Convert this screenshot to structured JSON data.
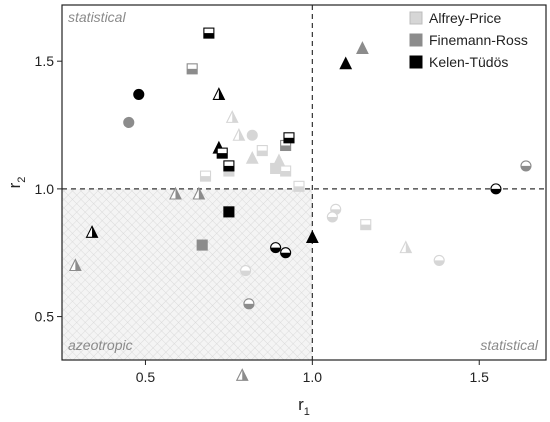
{
  "chart_data": {
    "type": "scatter",
    "xlabel": "r",
    "xlabel_sub": "1",
    "ylabel": "r",
    "ylabel_sub": "2",
    "xlim": [
      0.25,
      1.7
    ],
    "ylim": [
      0.33,
      1.72
    ],
    "x_ticks": [
      {
        "value": 0.5,
        "label": "0.5"
      },
      {
        "value": 1.0,
        "label": "1.0"
      },
      {
        "value": 1.5,
        "label": "1.5"
      }
    ],
    "y_ticks": [
      {
        "value": 0.5,
        "label": "0.5"
      },
      {
        "value": 1.0,
        "label": "1.0"
      },
      {
        "value": 1.5,
        "label": "1.5"
      }
    ],
    "reference_lines": {
      "x": 1.0,
      "y": 1.0
    },
    "shaded_region": {
      "x": [
        0.25,
        1.0
      ],
      "y": [
        0.33,
        1.0
      ]
    },
    "region_labels": {
      "top_left": "statistical",
      "bottom_left": "azeotropic",
      "bottom_right": "statistical"
    },
    "legend_position": "top-right",
    "series": [
      {
        "name": "Alfrey-Price",
        "color": "#d6d6d6",
        "points": [
          {
            "x": 0.76,
            "y": 1.28,
            "shape": "triangle",
            "fill": "half"
          },
          {
            "x": 0.78,
            "y": 1.21,
            "shape": "triangle",
            "fill": "half"
          },
          {
            "x": 0.82,
            "y": 1.21,
            "shape": "circle",
            "fill": "full"
          },
          {
            "x": 0.85,
            "y": 1.15,
            "shape": "square",
            "fill": "half"
          },
          {
            "x": 0.82,
            "y": 1.12,
            "shape": "triangle",
            "fill": "full"
          },
          {
            "x": 0.89,
            "y": 1.08,
            "shape": "square",
            "fill": "full"
          },
          {
            "x": 0.9,
            "y": 1.11,
            "shape": "triangle",
            "fill": "full"
          },
          {
            "x": 0.92,
            "y": 1.07,
            "shape": "square",
            "fill": "half"
          },
          {
            "x": 0.68,
            "y": 1.05,
            "shape": "square",
            "fill": "half"
          },
          {
            "x": 0.75,
            "y": 1.07,
            "shape": "square",
            "fill": "half"
          },
          {
            "x": 0.96,
            "y": 1.01,
            "shape": "square",
            "fill": "half"
          },
          {
            "x": 0.8,
            "y": 0.68,
            "shape": "circle",
            "fill": "half"
          },
          {
            "x": 1.07,
            "y": 0.92,
            "shape": "circle",
            "fill": "half"
          },
          {
            "x": 1.06,
            "y": 0.89,
            "shape": "circle",
            "fill": "half"
          },
          {
            "x": 1.16,
            "y": 0.86,
            "shape": "square",
            "fill": "half"
          },
          {
            "x": 1.28,
            "y": 0.77,
            "shape": "triangle",
            "fill": "half"
          },
          {
            "x": 1.38,
            "y": 0.72,
            "shape": "circle",
            "fill": "half"
          }
        ]
      },
      {
        "name": "Finemann-Ross",
        "color": "#8c8c8c",
        "points": [
          {
            "x": 1.15,
            "y": 1.55,
            "shape": "triangle",
            "fill": "full"
          },
          {
            "x": 0.64,
            "y": 1.47,
            "shape": "square",
            "fill": "half"
          },
          {
            "x": 0.45,
            "y": 1.26,
            "shape": "circle",
            "fill": "full"
          },
          {
            "x": 0.92,
            "y": 1.17,
            "shape": "square",
            "fill": "half"
          },
          {
            "x": 0.59,
            "y": 0.98,
            "shape": "triangle",
            "fill": "half"
          },
          {
            "x": 0.66,
            "y": 0.98,
            "shape": "triangle",
            "fill": "half"
          },
          {
            "x": 0.67,
            "y": 0.78,
            "shape": "square",
            "fill": "full"
          },
          {
            "x": 0.29,
            "y": 0.7,
            "shape": "triangle",
            "fill": "half"
          },
          {
            "x": 0.81,
            "y": 0.55,
            "shape": "circle",
            "fill": "half"
          },
          {
            "x": 0.79,
            "y": 0.27,
            "shape": "triangle",
            "fill": "half"
          },
          {
            "x": 1.64,
            "y": 1.09,
            "shape": "circle",
            "fill": "half"
          }
        ]
      },
      {
        "name": "Kelen-Tüdös",
        "color": "#000000",
        "points": [
          {
            "x": 0.69,
            "y": 1.61,
            "shape": "square",
            "fill": "half"
          },
          {
            "x": 1.1,
            "y": 1.49,
            "shape": "triangle",
            "fill": "full"
          },
          {
            "x": 0.48,
            "y": 1.37,
            "shape": "circle",
            "fill": "full"
          },
          {
            "x": 0.72,
            "y": 1.37,
            "shape": "triangle",
            "fill": "half"
          },
          {
            "x": 0.93,
            "y": 1.2,
            "shape": "square",
            "fill": "half"
          },
          {
            "x": 0.72,
            "y": 1.16,
            "shape": "triangle",
            "fill": "full"
          },
          {
            "x": 0.73,
            "y": 1.14,
            "shape": "square",
            "fill": "half"
          },
          {
            "x": 0.75,
            "y": 1.09,
            "shape": "square",
            "fill": "half"
          },
          {
            "x": 0.75,
            "y": 0.91,
            "shape": "square",
            "fill": "full"
          },
          {
            "x": 0.34,
            "y": 0.83,
            "shape": "triangle",
            "fill": "half"
          },
          {
            "x": 0.89,
            "y": 0.77,
            "shape": "circle",
            "fill": "half"
          },
          {
            "x": 0.92,
            "y": 0.75,
            "shape": "circle",
            "fill": "half"
          },
          {
            "x": 1.0,
            "y": 0.81,
            "shape": "triangle",
            "fill": "full"
          },
          {
            "x": 1.55,
            "y": 1.0,
            "shape": "circle",
            "fill": "half"
          }
        ]
      }
    ]
  }
}
